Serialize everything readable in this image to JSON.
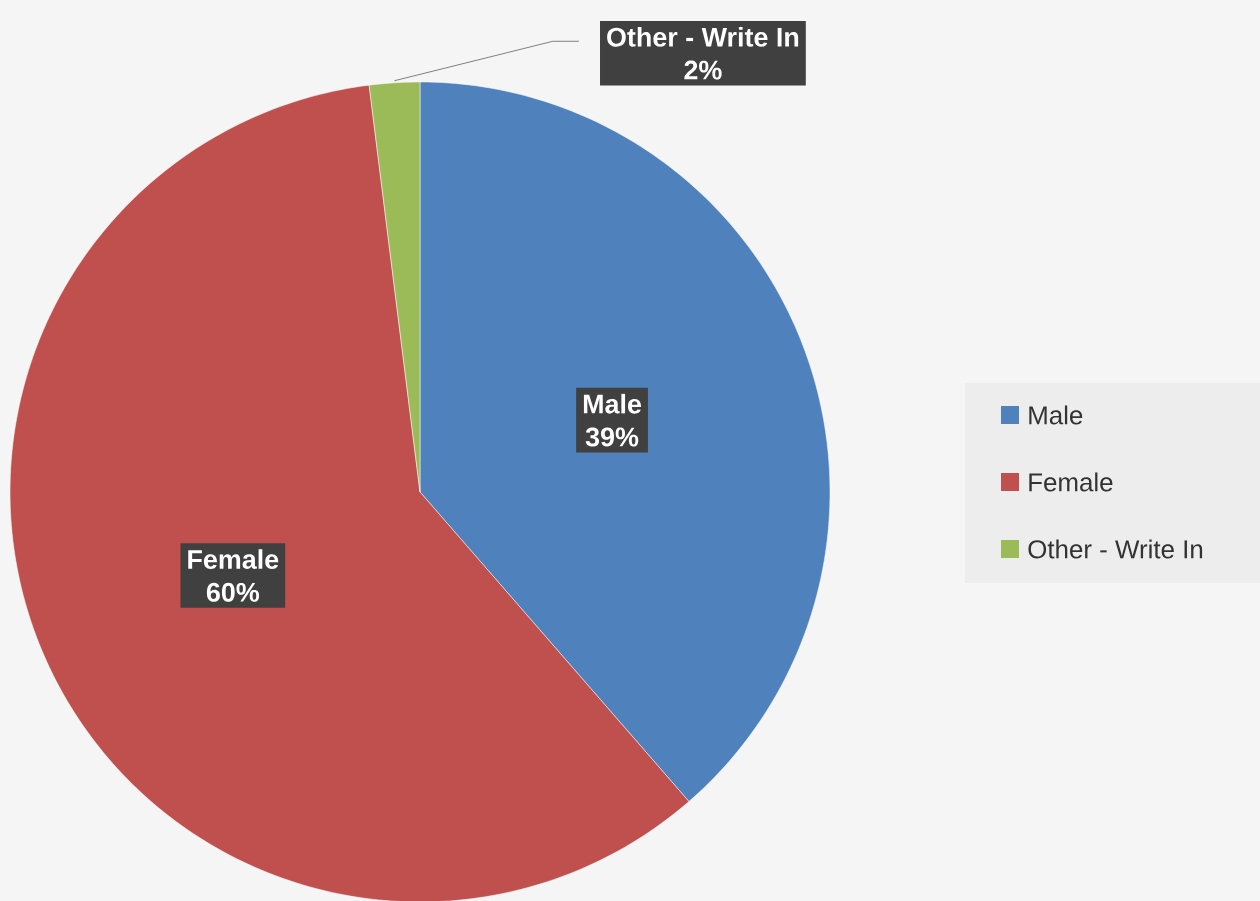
{
  "chart_data": {
    "type": "pie",
    "categories": [
      "Male",
      "Female",
      "Other - Write In"
    ],
    "values": [
      39,
      60,
      2
    ],
    "value_labels": [
      "39%",
      "60%",
      "2%"
    ],
    "colors": [
      "#4f81bd",
      "#c0504d",
      "#9bbb59"
    ],
    "legend": "right"
  }
}
